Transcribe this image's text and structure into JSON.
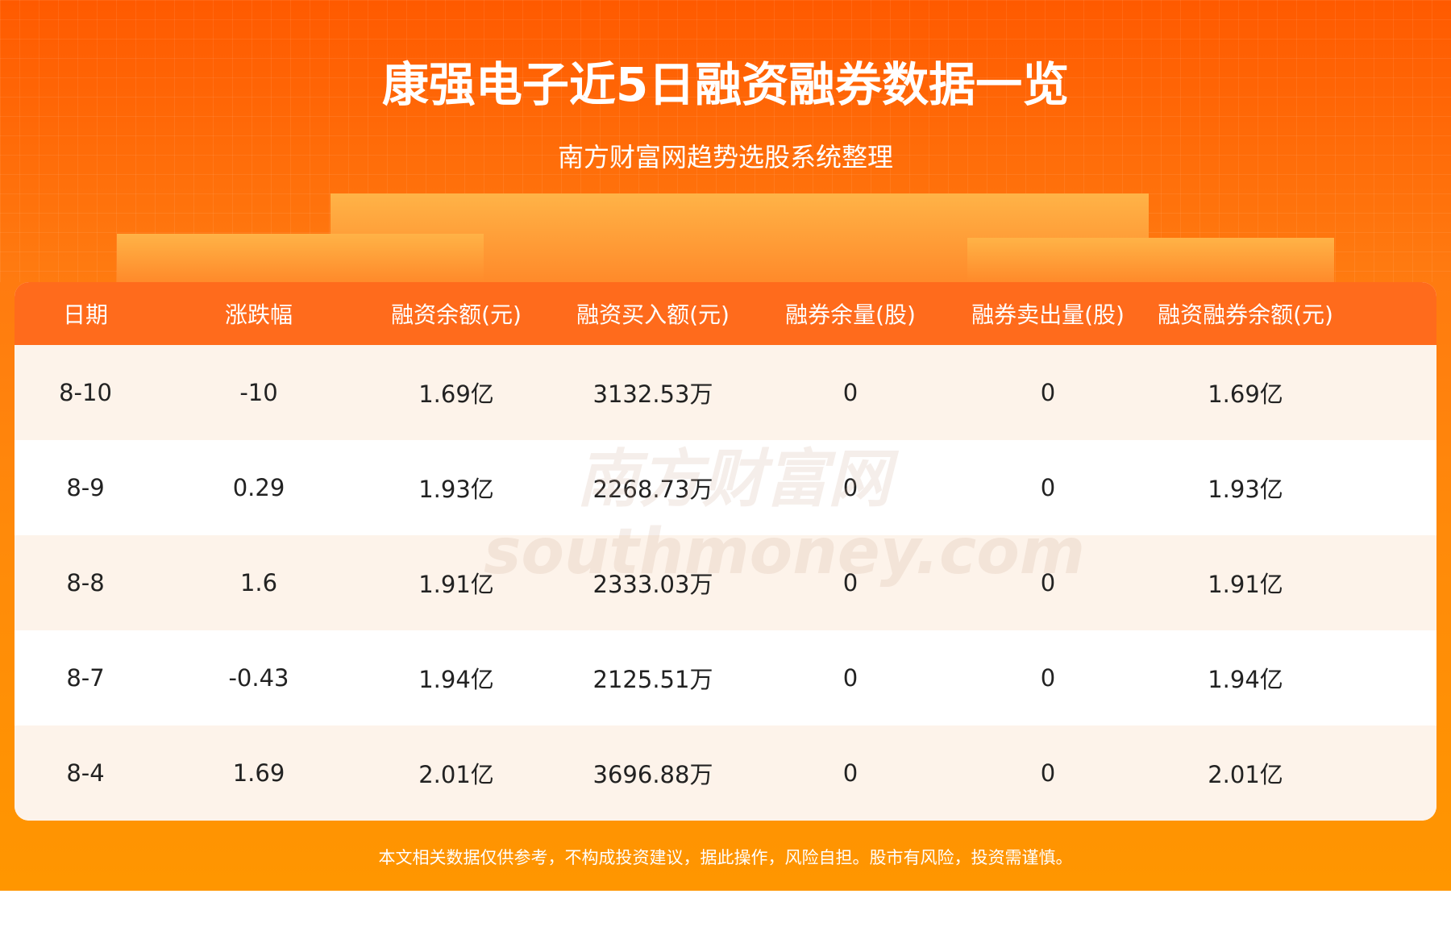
{
  "title": "康强电子近5日融资融券数据一览",
  "subtitle": "南方财富网趋势选股系统整理",
  "watermark": {
    "cn": "南方财富网",
    "en": "southmoney.com"
  },
  "table": {
    "headers": [
      "日期",
      "涨跌幅",
      "融资余额(元)",
      "融资买入额(元)",
      "融券余量(股)",
      "融券卖出量(股)",
      "融资融券余额(元)"
    ],
    "rows": [
      [
        "8-10",
        "-10",
        "1.69亿",
        "3132.53万",
        "0",
        "0",
        "1.69亿"
      ],
      [
        "8-9",
        "0.29",
        "1.93亿",
        "2268.73万",
        "0",
        "0",
        "1.93亿"
      ],
      [
        "8-8",
        "1.6",
        "1.91亿",
        "2333.03万",
        "0",
        "0",
        "1.91亿"
      ],
      [
        "8-7",
        "-0.43",
        "1.94亿",
        "2125.51万",
        "0",
        "0",
        "1.94亿"
      ],
      [
        "8-4",
        "1.69",
        "2.01亿",
        "3696.88万",
        "0",
        "0",
        "2.01亿"
      ]
    ]
  },
  "footer": "本文相关数据仅供参考，不构成投资建议，据此操作，风险自担。股市有风险，投资需谨慎。",
  "colors": {
    "header": "#ff6b1c",
    "row_alt": "#fdf3ea",
    "background": "#ff8a0a"
  }
}
